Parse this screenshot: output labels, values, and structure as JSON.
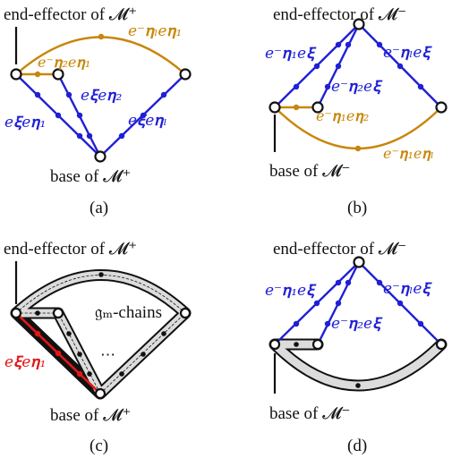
{
  "colors": {
    "blue": "#1f1fd6",
    "orange": "#c8860a",
    "red": "#e01818",
    "black": "#111111",
    "chain_fill": "#d9d9d9"
  },
  "panels": {
    "a": {
      "caption": "(a)",
      "end_effector": "end-effector of 𝓜⁺",
      "base": "base of 𝓜⁺",
      "edge_left": "e𝛏e𝛈₁",
      "edge_inner": "e𝛏e𝛈₂",
      "edge_right": "e𝛏e𝛈ₗ",
      "arc_top": "e⁻𝛈ₗe𝛈₁",
      "short_orange": "e⁻𝛈₂e𝛈₁"
    },
    "b": {
      "caption": "(b)",
      "end_effector": "end-effector of 𝓜⁻",
      "base": "base of 𝓜⁻",
      "edge_left": "e⁻𝛈₁e𝛏",
      "edge_inner": "e⁻𝛈₂e𝛏",
      "edge_right": "e⁻𝛈ₗe𝛏",
      "arc_bottom": "e⁻𝛈₁e𝛈ₗ",
      "short_orange": "e⁻𝛈₁e𝛈₂"
    },
    "c": {
      "caption": "(c)",
      "end_effector": "end-effector of 𝓜⁺",
      "base": "base of 𝓜⁺",
      "edge_red": "e𝛏e𝛈₁",
      "chains": "𝔤ₘ-chains",
      "dots": "⋯"
    },
    "d": {
      "caption": "(d)",
      "end_effector": "end-effector of 𝓜⁻",
      "base": "base of 𝓜⁻",
      "edge_left": "e⁻𝛈₁e𝛏",
      "edge_inner": "e⁻𝛈₂e𝛏",
      "edge_right": "e⁻𝛈ₗe𝛏"
    }
  }
}
